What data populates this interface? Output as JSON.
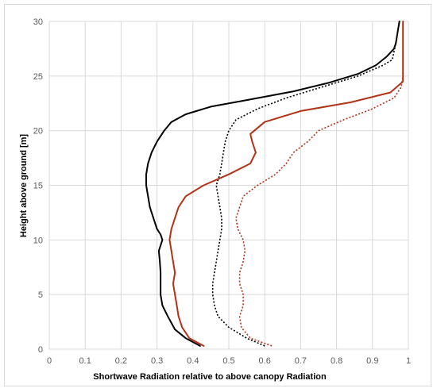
{
  "chart_data": {
    "type": "line",
    "title": "",
    "xlabel": "Shortwave Radiation relative to above canopy Radiation",
    "ylabel": "Height above ground [m]",
    "xlim": [
      0,
      1
    ],
    "ylim": [
      0,
      30
    ],
    "x_ticks": [
      "0",
      "0.1",
      "0.2",
      "0.3",
      "0.4",
      "0.5",
      "0.6",
      "0.7",
      "0.8",
      "0.9",
      "1"
    ],
    "y_ticks": [
      "0",
      "5",
      "10",
      "15",
      "20",
      "25",
      "30"
    ],
    "grid": true,
    "legend": "none",
    "series": [
      {
        "color": "#000000",
        "style": "solid",
        "points": [
          [
            0.42,
            0.3
          ],
          [
            0.38,
            1
          ],
          [
            0.35,
            1.8
          ],
          [
            0.33,
            3
          ],
          [
            0.315,
            4
          ],
          [
            0.31,
            5
          ],
          [
            0.31,
            6
          ],
          [
            0.31,
            7
          ],
          [
            0.308,
            8
          ],
          [
            0.305,
            9
          ],
          [
            0.315,
            10
          ],
          [
            0.31,
            10.5
          ],
          [
            0.3,
            11
          ],
          [
            0.29,
            12
          ],
          [
            0.28,
            13
          ],
          [
            0.275,
            14
          ],
          [
            0.27,
            15
          ],
          [
            0.27,
            16
          ],
          [
            0.275,
            17
          ],
          [
            0.285,
            18
          ],
          [
            0.3,
            19
          ],
          [
            0.32,
            20
          ],
          [
            0.34,
            20.8
          ],
          [
            0.38,
            21.5
          ],
          [
            0.45,
            22.2
          ],
          [
            0.55,
            22.8
          ],
          [
            0.68,
            23.6
          ],
          [
            0.78,
            24.4
          ],
          [
            0.86,
            25.2
          ],
          [
            0.91,
            26
          ],
          [
            0.94,
            26.8
          ],
          [
            0.96,
            27.5
          ],
          [
            0.965,
            28
          ],
          [
            0.97,
            29
          ],
          [
            0.975,
            30
          ]
        ]
      },
      {
        "color": "#000000",
        "style": "dotted",
        "points": [
          [
            0.6,
            0.3
          ],
          [
            0.55,
            1
          ],
          [
            0.5,
            2
          ],
          [
            0.47,
            3
          ],
          [
            0.46,
            4
          ],
          [
            0.455,
            5
          ],
          [
            0.455,
            6
          ],
          [
            0.46,
            7
          ],
          [
            0.465,
            8
          ],
          [
            0.47,
            9
          ],
          [
            0.475,
            10
          ],
          [
            0.48,
            11
          ],
          [
            0.48,
            12
          ],
          [
            0.475,
            13
          ],
          [
            0.47,
            14
          ],
          [
            0.465,
            15
          ],
          [
            0.475,
            16
          ],
          [
            0.48,
            17
          ],
          [
            0.485,
            18
          ],
          [
            0.49,
            19
          ],
          [
            0.5,
            20
          ],
          [
            0.52,
            21
          ],
          [
            0.58,
            22
          ],
          [
            0.66,
            23
          ],
          [
            0.76,
            24
          ],
          [
            0.86,
            25
          ],
          [
            0.93,
            26
          ],
          [
            0.955,
            26.5
          ],
          [
            0.965,
            28
          ],
          [
            0.97,
            29
          ],
          [
            0.975,
            30
          ]
        ]
      },
      {
        "color": "#b13217",
        "style": "solid",
        "points": [
          [
            0.43,
            0.3
          ],
          [
            0.39,
            1
          ],
          [
            0.37,
            2
          ],
          [
            0.36,
            3
          ],
          [
            0.355,
            4
          ],
          [
            0.35,
            5
          ],
          [
            0.345,
            6
          ],
          [
            0.35,
            7
          ],
          [
            0.345,
            8
          ],
          [
            0.34,
            9
          ],
          [
            0.335,
            10
          ],
          [
            0.34,
            11
          ],
          [
            0.35,
            12
          ],
          [
            0.36,
            13
          ],
          [
            0.38,
            14
          ],
          [
            0.43,
            15
          ],
          [
            0.5,
            16
          ],
          [
            0.56,
            17
          ],
          [
            0.575,
            18
          ],
          [
            0.565,
            19
          ],
          [
            0.56,
            19.7
          ],
          [
            0.6,
            20.8
          ],
          [
            0.7,
            21.8
          ],
          [
            0.84,
            22.6
          ],
          [
            0.95,
            23.5
          ],
          [
            0.985,
            24.5
          ],
          [
            0.985,
            25.5
          ],
          [
            0.985,
            27
          ],
          [
            0.985,
            28.5
          ],
          [
            0.985,
            30
          ]
        ]
      },
      {
        "color": "#b13217",
        "style": "dotted",
        "points": [
          [
            0.62,
            0.3
          ],
          [
            0.56,
            1
          ],
          [
            0.535,
            2
          ],
          [
            0.53,
            3
          ],
          [
            0.54,
            4
          ],
          [
            0.54,
            5
          ],
          [
            0.53,
            6
          ],
          [
            0.53,
            7
          ],
          [
            0.54,
            8
          ],
          [
            0.545,
            9
          ],
          [
            0.54,
            10
          ],
          [
            0.525,
            11
          ],
          [
            0.52,
            12
          ],
          [
            0.53,
            13
          ],
          [
            0.54,
            14
          ],
          [
            0.58,
            15
          ],
          [
            0.63,
            16
          ],
          [
            0.66,
            17
          ],
          [
            0.68,
            18
          ],
          [
            0.72,
            19
          ],
          [
            0.75,
            20
          ],
          [
            0.82,
            21
          ],
          [
            0.9,
            22
          ],
          [
            0.96,
            23
          ],
          [
            0.98,
            24
          ],
          [
            0.985,
            25
          ],
          [
            0.985,
            26
          ],
          [
            0.985,
            28
          ],
          [
            0.985,
            30
          ]
        ]
      }
    ]
  }
}
